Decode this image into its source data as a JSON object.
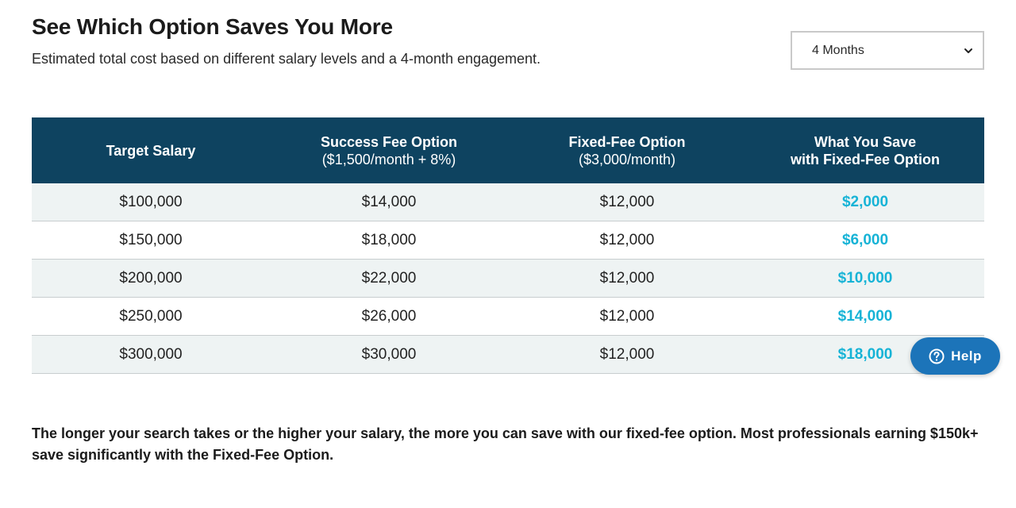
{
  "header": {
    "title": "See Which Option Saves You More",
    "subtitle": "Estimated total cost based on different salary levels and a 4-month engagement."
  },
  "duration_select": {
    "selected": "4 Months"
  },
  "table": {
    "columns": [
      {
        "title": "Target Salary",
        "subtitle": ""
      },
      {
        "title": "Success Fee Option",
        "subtitle": "($1,500/month  + 8%)"
      },
      {
        "title": "Fixed-Fee Option",
        "subtitle": "($3,000/month)"
      },
      {
        "title": "What You Save",
        "subtitle": "with Fixed-Fee Option"
      }
    ],
    "rows": [
      [
        "$100,000",
        "$14,000",
        "$12,000",
        "$2,000"
      ],
      [
        "$150,000",
        "$18,000",
        "$12,000",
        "$6,000"
      ],
      [
        "$200,000",
        "$22,000",
        "$12,000",
        "$10,000"
      ],
      [
        "$250,000",
        "$26,000",
        "$12,000",
        "$14,000"
      ],
      [
        "$300,000",
        "$30,000",
        "$12,000",
        "$18,000"
      ]
    ]
  },
  "footer": {
    "note": "The longer your search takes or the higher your salary, the more you can save with our fixed-fee option. Most professionals earning $150k+ save significantly with the Fixed-Fee Option."
  },
  "help_widget": {
    "label": "Help",
    "icon": "question-icon"
  },
  "colors": {
    "header_bg": "#0e4360",
    "savings_text": "#16b3d6",
    "row_alt_bg": "#eef3f3",
    "help_bg": "#1c74b9"
  }
}
